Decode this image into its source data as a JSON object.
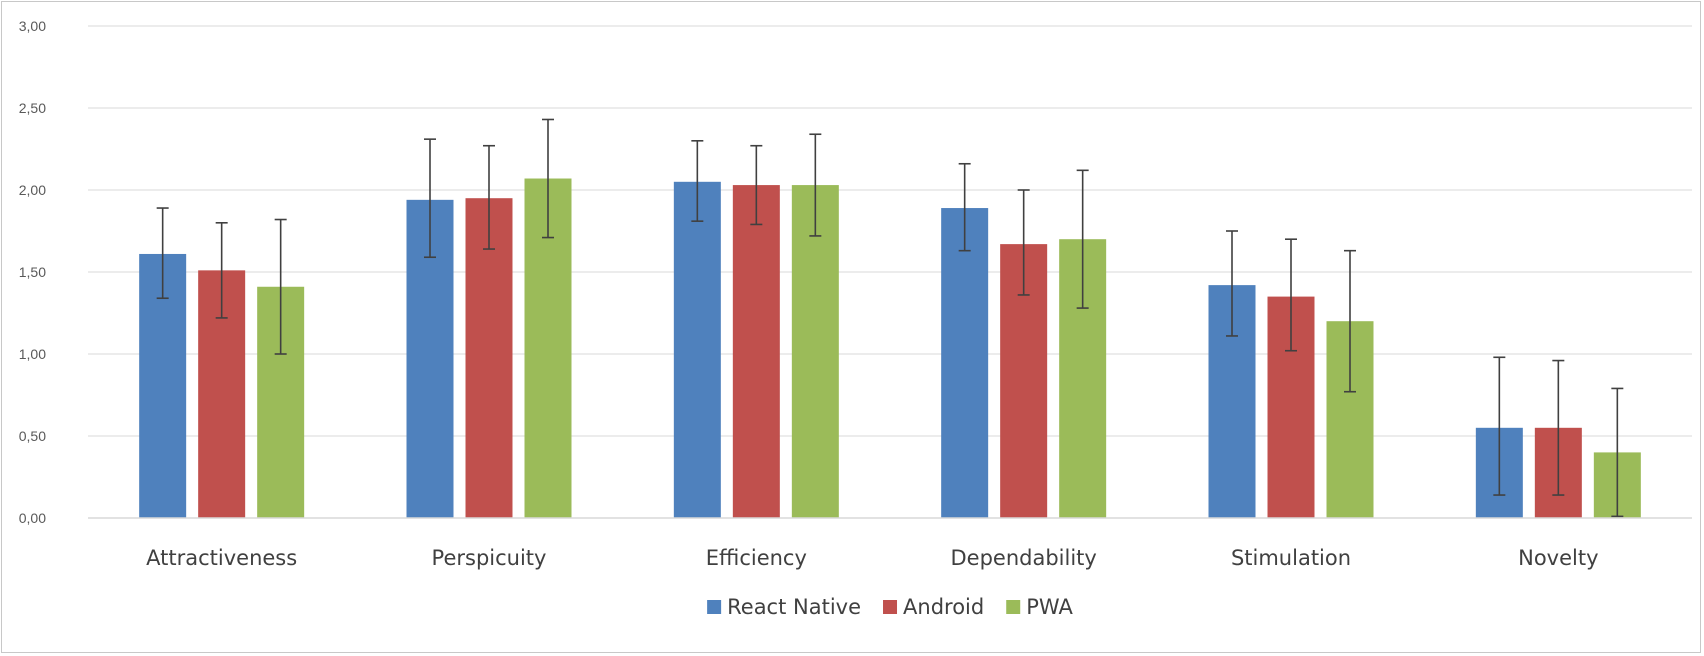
{
  "chart_data": {
    "type": "bar",
    "title": "",
    "xlabel": "",
    "ylabel": "",
    "ylim": [
      0,
      3
    ],
    "yticks": [
      0,
      0.5,
      1,
      1.5,
      2,
      2.5,
      3
    ],
    "ytick_labels": [
      "0,00",
      "0,50",
      "1,00",
      "1,50",
      "2,00",
      "2,50",
      "3,00"
    ],
    "grid": true,
    "legend_position": "bottom",
    "categories": [
      "Attractiveness",
      "Perspicuity",
      "Efficiency",
      "Dependability",
      "Stimulation",
      "Novelty"
    ],
    "series": [
      {
        "name": "React Native",
        "color": "#4f81bd",
        "values": [
          1.61,
          1.94,
          2.05,
          1.89,
          1.42,
          0.55
        ],
        "error_low": [
          1.34,
          1.59,
          1.81,
          1.63,
          1.11,
          0.14
        ],
        "error_high": [
          1.89,
          2.31,
          2.3,
          2.16,
          1.75,
          0.98
        ]
      },
      {
        "name": "Android",
        "color": "#c0504d",
        "values": [
          1.51,
          1.95,
          2.03,
          1.67,
          1.35,
          0.55
        ],
        "error_low": [
          1.22,
          1.64,
          1.79,
          1.36,
          1.02,
          0.14
        ],
        "error_high": [
          1.8,
          2.27,
          2.27,
          2.0,
          1.7,
          0.96
        ]
      },
      {
        "name": "PWA",
        "color": "#9bbb59",
        "values": [
          1.41,
          2.07,
          2.03,
          1.7,
          1.2,
          0.4
        ],
        "error_low": [
          1.0,
          1.71,
          1.72,
          1.28,
          0.77,
          0.01
        ],
        "error_high": [
          1.82,
          2.43,
          2.34,
          2.12,
          1.63,
          0.79
        ]
      }
    ]
  }
}
